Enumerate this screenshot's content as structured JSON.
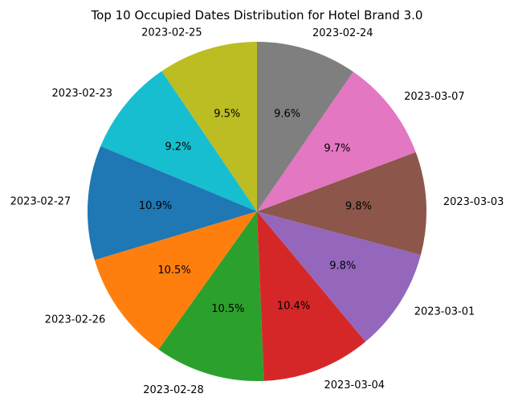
{
  "chart_data": {
    "type": "pie",
    "title": "Top 10 Occupied Dates Distribution for Hotel Brand 3.0",
    "start_angle_deg": 90,
    "direction": "counterclockwise",
    "slices": [
      {
        "label": "2023-02-25",
        "percent": 9.5,
        "pct_text": "9.5%",
        "color": "#bcbd22"
      },
      {
        "label": "2023-02-23",
        "percent": 9.2,
        "pct_text": "9.2%",
        "color": "#17becf"
      },
      {
        "label": "2023-02-27",
        "percent": 10.9,
        "pct_text": "10.9%",
        "color": "#1f77b4"
      },
      {
        "label": "2023-02-26",
        "percent": 10.5,
        "pct_text": "10.5%",
        "color": "#ff7f0e"
      },
      {
        "label": "2023-02-28",
        "percent": 10.5,
        "pct_text": "10.5%",
        "color": "#2ca02c"
      },
      {
        "label": "2023-03-04",
        "percent": 10.4,
        "pct_text": "10.4%",
        "color": "#d62728"
      },
      {
        "label": "2023-03-01",
        "percent": 9.8,
        "pct_text": "9.8%",
        "color": "#9467bd"
      },
      {
        "label": "2023-03-03",
        "percent": 9.8,
        "pct_text": "9.8%",
        "color": "#8c564b"
      },
      {
        "label": "2023-03-07",
        "percent": 9.7,
        "pct_text": "9.7%",
        "color": "#e377c2"
      },
      {
        "label": "2023-02-24",
        "percent": 9.6,
        "pct_text": "9.6%",
        "color": "#7f7f7f"
      }
    ]
  }
}
